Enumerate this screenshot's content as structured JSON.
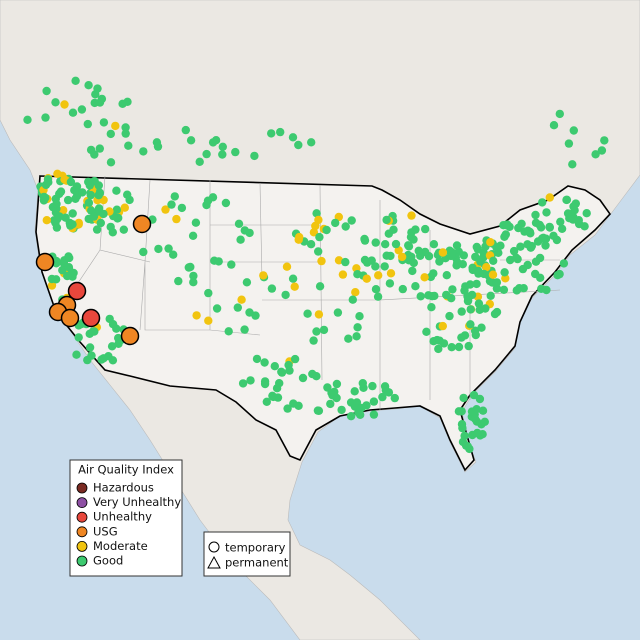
{
  "legend": {
    "title": "Air Quality Index",
    "items": [
      {
        "label": "Hazardous",
        "color": "#7a2a22"
      },
      {
        "label": "Very Unhealthy",
        "color": "#8d4fa3"
      },
      {
        "label": "Unhealthy",
        "color": "#e8473c"
      },
      {
        "label": "USG",
        "color": "#ef8623"
      },
      {
        "label": "Moderate",
        "color": "#f1c40f"
      },
      {
        "label": "Good",
        "color": "#3dca70"
      }
    ]
  },
  "shape_legend": {
    "items": [
      "temporary",
      "permanent"
    ]
  }
}
